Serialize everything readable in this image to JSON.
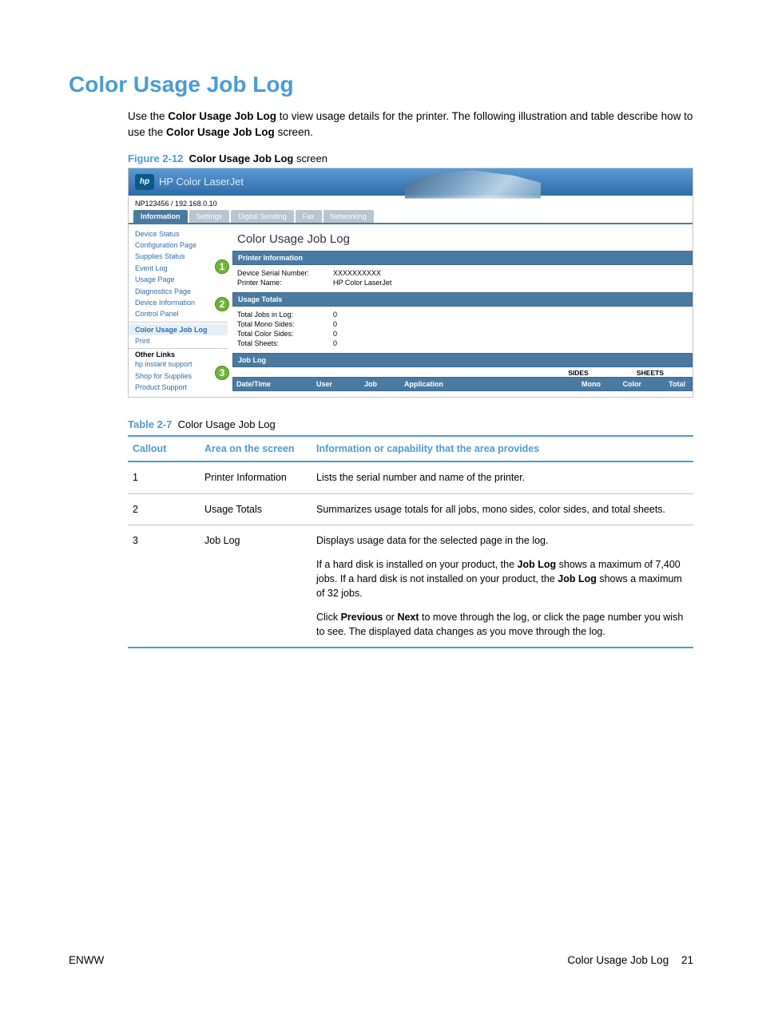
{
  "page": {
    "title": "Color Usage Job Log",
    "intro_pre": "Use the ",
    "intro_b1": "Color Usage Job Log",
    "intro_mid": " to view usage details for the printer. The following illustration and table describe how to use the ",
    "intro_b2": "Color Usage Job Log",
    "intro_post": " screen."
  },
  "figure": {
    "label": "Figure 2-12",
    "strong": "Color Usage Job Log",
    "rest": " screen"
  },
  "ews": {
    "product": "HP Color LaserJet",
    "ip": "NP123456 / 192.168.0.10",
    "tabs": [
      "Information",
      "Settings",
      "Digital Sending",
      "Fax",
      "Networking"
    ],
    "side_top": [
      "Device Status",
      "Configuration Page",
      "Supplies Status",
      "Event Log",
      "Usage Page",
      "Diagnostics Page",
      "Device Information",
      "Control Panel"
    ],
    "side_sel": "Color Usage Job Log",
    "side_mid": [
      "Print"
    ],
    "side_head": "Other Links",
    "side_links": [
      "hp instant support",
      "Shop for Supplies",
      "Product Support"
    ],
    "main_title": "Color Usage Job Log",
    "sect1": "Printer Information",
    "kv1": [
      {
        "k": "Device Serial Number:",
        "v": "XXXXXXXXXX"
      },
      {
        "k": "Printer Name:",
        "v": "HP Color LaserJet"
      }
    ],
    "sect2": "Usage Totals",
    "kv2": [
      {
        "k": "Total Jobs in Log:",
        "v": "0"
      },
      {
        "k": "Total Mono Sides:",
        "v": "0"
      },
      {
        "k": "Total Color Sides:",
        "v": "0"
      },
      {
        "k": "Total Sheets:",
        "v": "0"
      }
    ],
    "sect3": "Job Log",
    "grp": [
      "SIDES",
      "SHEETS"
    ],
    "cols": [
      "Date/Time",
      "User",
      "Job",
      "Application",
      "Mono",
      "Color",
      "Total"
    ]
  },
  "table": {
    "caption_label": "Table 2-7",
    "caption_rest": "Color Usage Job Log",
    "head": [
      "Callout",
      "Area on the screen",
      "Information or capability that the area provides"
    ],
    "rows": [
      {
        "n": "1",
        "area": "Printer Information",
        "desc": "Lists the serial number and name of the printer."
      },
      {
        "n": "2",
        "area": "Usage Totals",
        "desc": "Summarizes usage totals for all jobs, mono sides, color sides, and total sheets."
      },
      {
        "n": "3",
        "area": "Job Log",
        "p1": "Displays usage data for the selected page in the log.",
        "p2a": "If a hard disk is installed on your product, the ",
        "p2b": "Job Log",
        "p2c": " shows a maximum of 7,400 jobs. If a hard disk is not installed on your product, the  ",
        "p2d": "Job Log",
        "p2e": " shows a maximum of 32 jobs.",
        "p3a": "Click ",
        "p3b": "Previous",
        "p3c": " or ",
        "p3d": "Next",
        "p3e": " to move through the log, or click the page number you wish to see. The displayed data changes as you move through the log."
      }
    ]
  },
  "footer": {
    "left": "ENWW",
    "right": "Color Usage Job Log",
    "page": "21"
  },
  "colors": {
    "accent": "#4a9bd4",
    "ews_bar": "#4a7aa0",
    "callout": "#6fb536"
  }
}
